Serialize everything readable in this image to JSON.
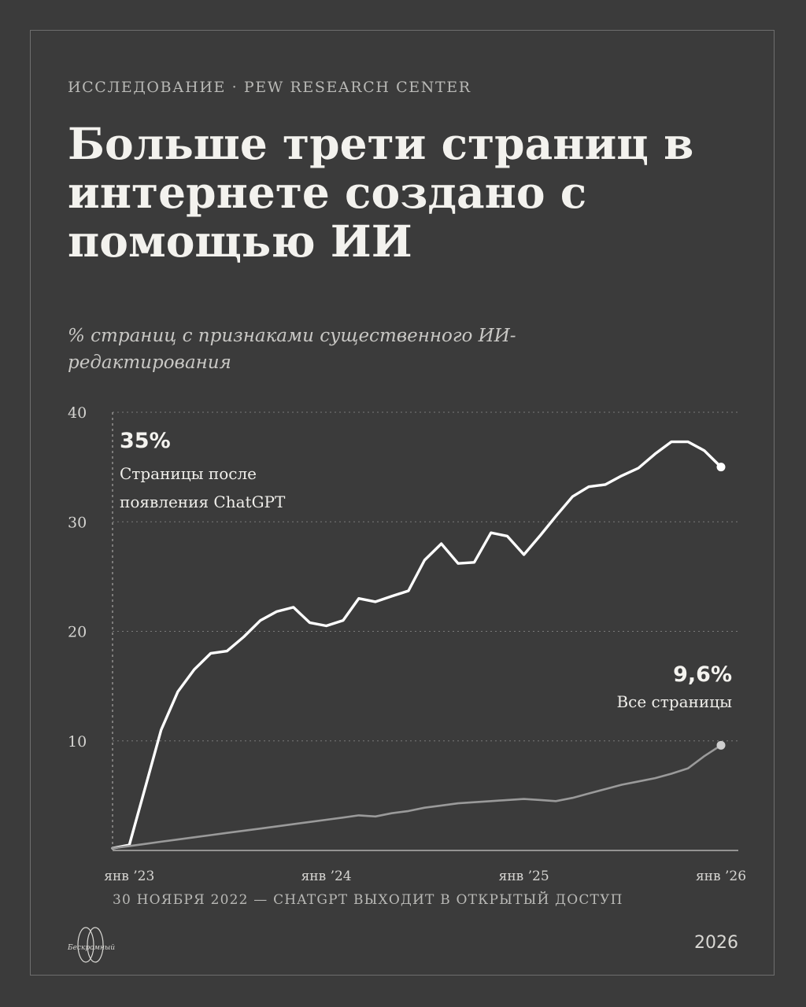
{
  "eyebrow": "ИССЛЕДОВАНИЕ · PEW RESEARCH CENTER",
  "title": "Больше трети страниц в интернете создано с помощью ИИ",
  "subtitle": "% страниц с признаками существенного ИИ-редактирования",
  "note": "30 НОЯБРЯ 2022 — CHATGPT ВЫХОДИТ В ОТКРЫТЫЙ ДОСТУП",
  "logo_text": "Бескромный",
  "year": "2026",
  "colors": {
    "background": "#3b3b3b",
    "primary_line": "#ffffff",
    "secondary_line": "#9a9a9a",
    "grid": "#7a7a7a"
  },
  "chart_data": {
    "type": "line",
    "title": "Больше трети страниц в интернете создано с помощью ИИ",
    "ylabel": "% страниц с признаками существенного ИИ-редактирования",
    "ylim": [
      0,
      40
    ],
    "yticks": [
      10,
      20,
      30,
      40
    ],
    "grid": true,
    "x_ticks": [
      {
        "label": "янв ’23",
        "x": "2023-01-01"
      },
      {
        "label": "янв ’24",
        "x": "2024-01-01"
      },
      {
        "label": "янв ’25",
        "x": "2025-01-01"
      },
      {
        "label": "янв ’26",
        "x": "2026-01-01"
      }
    ],
    "series": [
      {
        "label": "Страницы после появления ChatGPT",
        "annotation_value": "35%",
        "annotation_text": [
          "Страницы после",
          "появления ChatGPT"
        ],
        "color": "#ffffff",
        "points": [
          [
            "2022-12-01",
            0.2
          ],
          [
            "2023-01-01",
            0.5
          ],
          [
            "2023-02-01",
            6.0
          ],
          [
            "2023-03-01",
            11.0
          ],
          [
            "2023-04-01",
            14.5
          ],
          [
            "2023-05-01",
            16.5
          ],
          [
            "2023-06-01",
            18.0
          ],
          [
            "2023-07-01",
            18.2
          ],
          [
            "2023-08-01",
            19.5
          ],
          [
            "2023-09-01",
            21.0
          ],
          [
            "2023-10-01",
            21.8
          ],
          [
            "2023-11-01",
            22.2
          ],
          [
            "2023-12-01",
            20.8
          ],
          [
            "2024-01-01",
            20.5
          ],
          [
            "2024-02-01",
            21.0
          ],
          [
            "2024-03-01",
            23.0
          ],
          [
            "2024-04-01",
            22.7
          ],
          [
            "2024-05-01",
            23.2
          ],
          [
            "2024-06-01",
            23.7
          ],
          [
            "2024-07-01",
            26.5
          ],
          [
            "2024-08-01",
            28.0
          ],
          [
            "2024-09-01",
            26.2
          ],
          [
            "2024-10-01",
            26.3
          ],
          [
            "2024-11-01",
            29.0
          ],
          [
            "2024-12-01",
            28.7
          ],
          [
            "2025-01-01",
            27.0
          ],
          [
            "2025-02-01",
            28.8
          ],
          [
            "2025-03-01",
            30.5
          ],
          [
            "2025-04-01",
            32.3
          ],
          [
            "2025-05-01",
            33.2
          ],
          [
            "2025-06-01",
            33.4
          ],
          [
            "2025-07-01",
            34.2
          ],
          [
            "2025-08-01",
            34.9
          ],
          [
            "2025-09-01",
            36.2
          ],
          [
            "2025-10-01",
            37.3
          ],
          [
            "2025-11-01",
            37.3
          ],
          [
            "2025-12-01",
            36.5
          ],
          [
            "2026-01-01",
            35.0
          ]
        ]
      },
      {
        "label": "Все страницы",
        "annotation_value": "9,6%",
        "annotation_text": [
          "Все страницы"
        ],
        "color": "#9a9a9a",
        "points": [
          [
            "2022-12-01",
            0.2
          ],
          [
            "2023-01-01",
            0.4
          ],
          [
            "2023-02-01",
            0.6
          ],
          [
            "2023-03-01",
            0.8
          ],
          [
            "2023-04-01",
            1.0
          ],
          [
            "2023-05-01",
            1.2
          ],
          [
            "2023-06-01",
            1.4
          ],
          [
            "2023-07-01",
            1.6
          ],
          [
            "2023-08-01",
            1.8
          ],
          [
            "2023-09-01",
            2.0
          ],
          [
            "2023-10-01",
            2.2
          ],
          [
            "2023-11-01",
            2.4
          ],
          [
            "2023-12-01",
            2.6
          ],
          [
            "2024-01-01",
            2.8
          ],
          [
            "2024-02-01",
            3.0
          ],
          [
            "2024-03-01",
            3.2
          ],
          [
            "2024-04-01",
            3.1
          ],
          [
            "2024-05-01",
            3.4
          ],
          [
            "2024-06-01",
            3.6
          ],
          [
            "2024-07-01",
            3.9
          ],
          [
            "2024-08-01",
            4.1
          ],
          [
            "2024-09-01",
            4.3
          ],
          [
            "2024-10-01",
            4.4
          ],
          [
            "2024-11-01",
            4.5
          ],
          [
            "2024-12-01",
            4.6
          ],
          [
            "2025-01-01",
            4.7
          ],
          [
            "2025-02-01",
            4.6
          ],
          [
            "2025-03-01",
            4.5
          ],
          [
            "2025-04-01",
            4.8
          ],
          [
            "2025-05-01",
            5.2
          ],
          [
            "2025-06-01",
            5.6
          ],
          [
            "2025-07-01",
            6.0
          ],
          [
            "2025-08-01",
            6.3
          ],
          [
            "2025-09-01",
            6.6
          ],
          [
            "2025-10-01",
            7.0
          ],
          [
            "2025-11-01",
            7.5
          ],
          [
            "2025-12-01",
            8.6
          ],
          [
            "2026-01-01",
            9.6
          ]
        ]
      }
    ]
  }
}
